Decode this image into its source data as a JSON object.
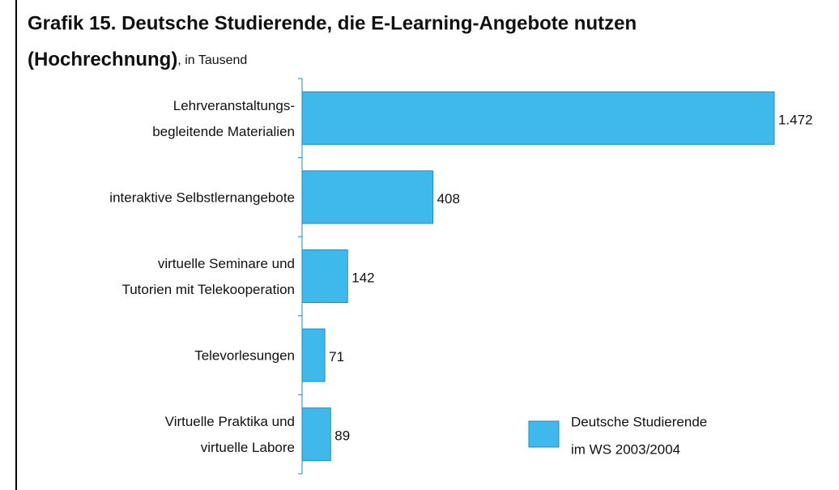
{
  "chart_data": {
    "type": "hbar",
    "title": [
      "Grafik 15. Deutsche Studierende, die E-Learning-Angebote nutzen",
      "(Hochrechnung)"
    ],
    "subtitle": ", in Tausend",
    "categories": [
      [
        "Lehrveranstaltungs-",
        "begleitende Materialien"
      ],
      [
        "interaktive Selbstlernangebote"
      ],
      [
        "virtuelle Seminare und",
        "Tutorien mit Telekooperation"
      ],
      [
        "Televorlesungen"
      ],
      [
        "Virtuelle Praktika und",
        "virtuelle Labore"
      ]
    ],
    "series": [
      {
        "name": [
          "Deutsche Studierende",
          "im WS 2003/2004"
        ],
        "color": "#3fb8ec",
        "values": [
          1472,
          408,
          142,
          71,
          89
        ],
        "value_labels": [
          "1.472",
          "408",
          "142",
          "71",
          "89"
        ]
      }
    ]
  }
}
